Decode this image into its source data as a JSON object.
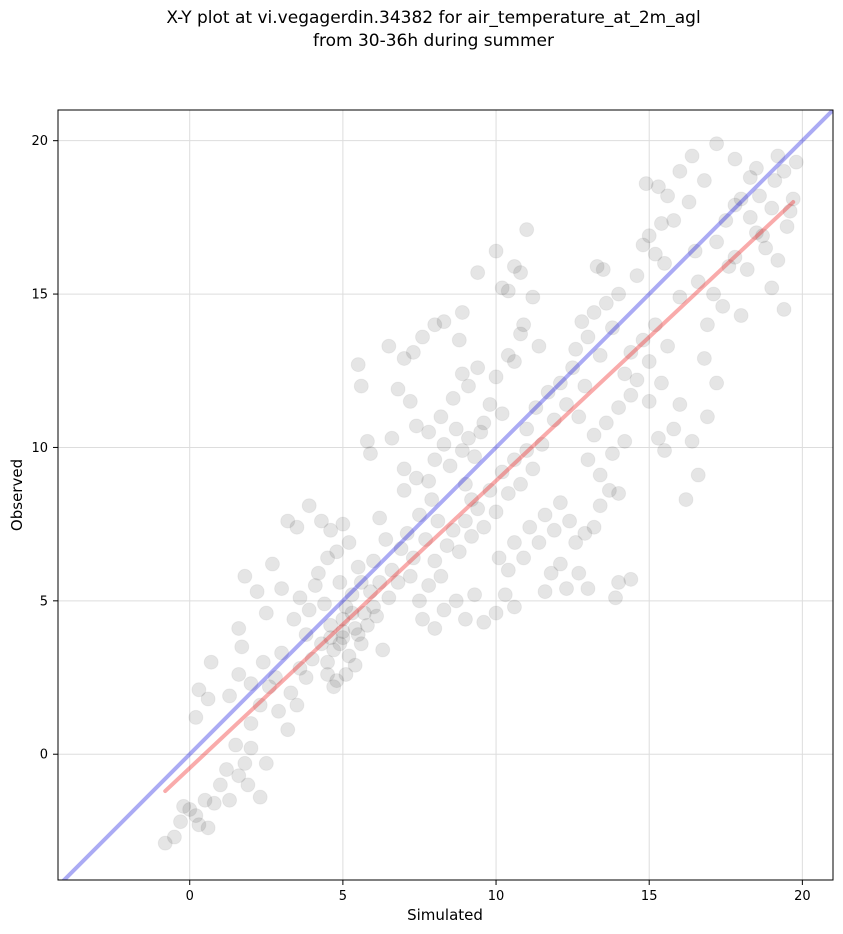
{
  "chart_data": {
    "type": "scatter",
    "title_line1": "X-Y plot at vi.vegagerdin.34382 for air_temperature_at_2m_agl",
    "title_line2": "from 30-36h during summer",
    "xlabel": "Simulated",
    "ylabel": "Observed",
    "xlim": [
      -4.3,
      21.0
    ],
    "ylim": [
      -4.1,
      21.0
    ],
    "xticks": [
      0,
      5,
      10,
      15,
      20
    ],
    "yticks": [
      0,
      5,
      10,
      15,
      20
    ],
    "xtick_labels": [
      "0",
      "5",
      "10",
      "15",
      "20"
    ],
    "ytick_labels": [
      "0",
      "5",
      "10",
      "15",
      "20"
    ],
    "grid": true,
    "reference_line": {
      "description": "1:1",
      "x": [
        -4.3,
        21.0
      ],
      "y": [
        -4.3,
        21.0
      ],
      "color": "#0000dd"
    },
    "fit_line": {
      "x": [
        -0.8,
        19.7
      ],
      "y": [
        -1.2,
        18.0
      ],
      "color": "#ee2222"
    },
    "point_color": "#000000",
    "points": [
      [
        -0.8,
        -2.9
      ],
      [
        -0.5,
        -2.7
      ],
      [
        -0.3,
        -2.2
      ],
      [
        0.0,
        -1.8
      ],
      [
        0.3,
        -2.3
      ],
      [
        0.5,
        -1.5
      ],
      [
        0.8,
        -1.6
      ],
      [
        0.6,
        -2.4
      ],
      [
        0.2,
        -2.0
      ],
      [
        -0.2,
        -1.7
      ],
      [
        1.0,
        -1.0
      ],
      [
        1.3,
        -1.5
      ],
      [
        1.6,
        -0.7
      ],
      [
        1.8,
        -0.3
      ],
      [
        2.0,
        0.2
      ],
      [
        1.5,
        0.3
      ],
      [
        1.2,
        -0.5
      ],
      [
        1.9,
        -1.0
      ],
      [
        2.3,
        -1.4
      ],
      [
        2.5,
        -0.3
      ],
      [
        0.2,
        1.2
      ],
      [
        0.6,
        1.8
      ],
      [
        0.7,
        3.0
      ],
      [
        0.3,
        2.1
      ],
      [
        1.3,
        1.9
      ],
      [
        1.6,
        2.6
      ],
      [
        1.7,
        3.5
      ],
      [
        2.0,
        1.0
      ],
      [
        2.3,
        1.6
      ],
      [
        2.6,
        2.2
      ],
      [
        1.6,
        4.1
      ],
      [
        1.8,
        5.8
      ],
      [
        2.2,
        5.3
      ],
      [
        2.5,
        4.6
      ],
      [
        2.7,
        6.2
      ],
      [
        3.0,
        5.4
      ],
      [
        3.2,
        7.6
      ],
      [
        3.5,
        7.4
      ],
      [
        3.9,
        8.1
      ],
      [
        4.3,
        7.6
      ],
      [
        2.0,
        2.3
      ],
      [
        2.4,
        3.0
      ],
      [
        2.8,
        2.5
      ],
      [
        3.0,
        3.3
      ],
      [
        3.3,
        2.0
      ],
      [
        3.6,
        2.8
      ],
      [
        2.9,
        1.4
      ],
      [
        3.2,
        0.8
      ],
      [
        3.5,
        1.6
      ],
      [
        3.8,
        2.5
      ],
      [
        3.4,
        4.4
      ],
      [
        3.6,
        5.1
      ],
      [
        3.9,
        4.7
      ],
      [
        4.1,
        5.5
      ],
      [
        3.8,
        3.9
      ],
      [
        4.0,
        3.1
      ],
      [
        4.3,
        3.6
      ],
      [
        4.5,
        2.6
      ],
      [
        4.6,
        4.2
      ],
      [
        4.4,
        4.9
      ],
      [
        4.2,
        5.9
      ],
      [
        4.5,
        6.4
      ],
      [
        4.8,
        6.6
      ],
      [
        5.0,
        7.5
      ],
      [
        4.6,
        7.3
      ],
      [
        5.2,
        6.9
      ],
      [
        4.9,
        5.6
      ],
      [
        5.3,
        5.2
      ],
      [
        5.5,
        6.1
      ],
      [
        5.1,
        4.8
      ],
      [
        4.7,
        3.4
      ],
      [
        5.0,
        3.8
      ],
      [
        5.2,
        3.2
      ],
      [
        4.8,
        2.4
      ],
      [
        5.4,
        2.9
      ],
      [
        5.6,
        3.6
      ],
      [
        5.0,
        4.4
      ],
      [
        5.4,
        4.1
      ],
      [
        5.7,
        4.6
      ],
      [
        5.9,
        5.3
      ],
      [
        4.5,
        3.0
      ],
      [
        4.7,
        2.2
      ],
      [
        5.1,
        2.6
      ],
      [
        4.9,
        3.6
      ],
      [
        5.3,
        4.6
      ],
      [
        5.0,
        4.0
      ],
      [
        4.6,
        3.8
      ],
      [
        5.5,
        3.9
      ],
      [
        5.8,
        4.2
      ],
      [
        6.0,
        4.8
      ],
      [
        5.6,
        5.6
      ],
      [
        6.0,
        6.3
      ],
      [
        6.2,
        5.6
      ],
      [
        6.4,
        7.0
      ],
      [
        6.6,
        6.0
      ],
      [
        6.2,
        7.7
      ],
      [
        6.5,
        5.1
      ],
      [
        6.8,
        5.6
      ],
      [
        6.1,
        4.5
      ],
      [
        6.3,
        3.4
      ],
      [
        5.8,
        10.2
      ],
      [
        5.9,
        9.8
      ],
      [
        5.5,
        12.7
      ],
      [
        5.6,
        12.0
      ],
      [
        6.5,
        13.3
      ],
      [
        7.0,
        12.9
      ],
      [
        7.3,
        13.1
      ],
      [
        7.6,
        13.6
      ],
      [
        8.0,
        14.0
      ],
      [
        8.3,
        14.1
      ],
      [
        6.8,
        11.9
      ],
      [
        7.2,
        11.5
      ],
      [
        6.6,
        10.3
      ],
      [
        7.0,
        9.3
      ],
      [
        7.4,
        10.7
      ],
      [
        7.8,
        10.5
      ],
      [
        8.2,
        11.0
      ],
      [
        8.6,
        11.6
      ],
      [
        8.9,
        12.4
      ],
      [
        8.8,
        13.5
      ],
      [
        8.9,
        14.4
      ],
      [
        9.1,
        12.0
      ],
      [
        9.4,
        12.6
      ],
      [
        9.6,
        10.8
      ],
      [
        9.8,
        11.4
      ],
      [
        10.0,
        12.3
      ],
      [
        10.2,
        11.1
      ],
      [
        10.4,
        13.0
      ],
      [
        10.6,
        12.8
      ],
      [
        10.8,
        13.7
      ],
      [
        9.4,
        15.7
      ],
      [
        10.0,
        16.4
      ],
      [
        10.2,
        15.2
      ],
      [
        10.4,
        15.1
      ],
      [
        10.6,
        15.9
      ],
      [
        10.8,
        15.7
      ],
      [
        11.0,
        17.1
      ],
      [
        11.2,
        14.9
      ],
      [
        10.9,
        14.0
      ],
      [
        11.4,
        13.3
      ],
      [
        6.9,
        6.7
      ],
      [
        7.1,
        7.2
      ],
      [
        7.3,
        6.4
      ],
      [
        7.5,
        7.8
      ],
      [
        7.7,
        7.0
      ],
      [
        7.9,
        8.3
      ],
      [
        7.0,
        8.6
      ],
      [
        7.4,
        9.0
      ],
      [
        7.8,
        8.9
      ],
      [
        8.1,
        7.6
      ],
      [
        8.0,
        9.6
      ],
      [
        8.3,
        10.1
      ],
      [
        8.5,
        9.4
      ],
      [
        8.7,
        10.6
      ],
      [
        8.9,
        9.9
      ],
      [
        9.1,
        10.3
      ],
      [
        9.3,
        9.7
      ],
      [
        9.5,
        10.5
      ],
      [
        9.0,
        8.8
      ],
      [
        9.2,
        8.3
      ],
      [
        7.2,
        5.8
      ],
      [
        7.5,
        5.0
      ],
      [
        7.8,
        5.5
      ],
      [
        8.0,
        6.3
      ],
      [
        8.2,
        5.8
      ],
      [
        8.4,
        6.8
      ],
      [
        8.6,
        7.3
      ],
      [
        8.8,
        6.6
      ],
      [
        9.0,
        7.6
      ],
      [
        9.2,
        7.1
      ],
      [
        7.6,
        4.4
      ],
      [
        8.0,
        4.1
      ],
      [
        8.3,
        4.7
      ],
      [
        8.7,
        5.0
      ],
      [
        9.0,
        4.4
      ],
      [
        9.3,
        5.2
      ],
      [
        9.6,
        4.3
      ],
      [
        10.0,
        4.6
      ],
      [
        10.3,
        5.2
      ],
      [
        10.6,
        4.8
      ],
      [
        9.4,
        8.0
      ],
      [
        9.6,
        7.4
      ],
      [
        9.8,
        8.6
      ],
      [
        10.0,
        7.9
      ],
      [
        10.2,
        9.2
      ],
      [
        10.4,
        8.5
      ],
      [
        10.6,
        9.6
      ],
      [
        10.8,
        8.8
      ],
      [
        11.0,
        9.9
      ],
      [
        11.2,
        9.3
      ],
      [
        10.1,
        6.4
      ],
      [
        10.4,
        6.0
      ],
      [
        10.6,
        6.9
      ],
      [
        10.9,
        6.4
      ],
      [
        11.1,
        7.4
      ],
      [
        11.4,
        6.9
      ],
      [
        11.6,
        7.8
      ],
      [
        11.9,
        7.3
      ],
      [
        12.1,
        8.2
      ],
      [
        12.4,
        7.6
      ],
      [
        11.0,
        10.6
      ],
      [
        11.3,
        11.3
      ],
      [
        11.5,
        10.1
      ],
      [
        11.7,
        11.8
      ],
      [
        11.9,
        10.9
      ],
      [
        12.1,
        12.1
      ],
      [
        12.3,
        11.4
      ],
      [
        12.5,
        12.6
      ],
      [
        12.7,
        11.0
      ],
      [
        12.9,
        12.0
      ],
      [
        11.6,
        5.3
      ],
      [
        11.8,
        5.9
      ],
      [
        12.1,
        6.2
      ],
      [
        12.3,
        5.4
      ],
      [
        12.6,
        6.9
      ],
      [
        12.9,
        7.2
      ],
      [
        13.2,
        7.4
      ],
      [
        13.4,
        8.1
      ],
      [
        12.7,
        5.9
      ],
      [
        13.0,
        5.4
      ],
      [
        12.6,
        13.2
      ],
      [
        12.8,
        14.1
      ],
      [
        13.0,
        13.6
      ],
      [
        13.2,
        14.4
      ],
      [
        13.4,
        13.0
      ],
      [
        13.6,
        14.7
      ],
      [
        13.8,
        13.9
      ],
      [
        14.0,
        15.0
      ],
      [
        13.3,
        15.9
      ],
      [
        13.5,
        15.8
      ],
      [
        13.0,
        9.6
      ],
      [
        13.2,
        10.4
      ],
      [
        13.4,
        9.1
      ],
      [
        13.6,
        10.8
      ],
      [
        13.8,
        9.8
      ],
      [
        14.0,
        11.3
      ],
      [
        14.2,
        10.2
      ],
      [
        14.4,
        11.7
      ],
      [
        13.7,
        8.6
      ],
      [
        14.0,
        8.5
      ],
      [
        14.2,
        12.4
      ],
      [
        14.4,
        13.1
      ],
      [
        14.6,
        12.2
      ],
      [
        14.8,
        13.5
      ],
      [
        15.0,
        12.8
      ],
      [
        15.2,
        14.0
      ],
      [
        15.4,
        12.1
      ],
      [
        15.6,
        13.3
      ],
      [
        15.0,
        11.5
      ],
      [
        15.3,
        10.3
      ],
      [
        14.0,
        5.6
      ],
      [
        13.9,
        5.1
      ],
      [
        14.4,
        5.7
      ],
      [
        15.5,
        9.9
      ],
      [
        15.8,
        10.6
      ],
      [
        16.0,
        11.4
      ],
      [
        16.2,
        8.3
      ],
      [
        16.4,
        10.2
      ],
      [
        16.6,
        9.1
      ],
      [
        16.9,
        11.0
      ],
      [
        14.6,
        15.6
      ],
      [
        14.8,
        16.6
      ],
      [
        15.0,
        16.9
      ],
      [
        15.2,
        16.3
      ],
      [
        15.4,
        17.3
      ],
      [
        15.5,
        16.0
      ],
      [
        15.8,
        17.4
      ],
      [
        16.0,
        14.9
      ],
      [
        16.3,
        18.0
      ],
      [
        16.5,
        16.4
      ],
      [
        14.9,
        18.6
      ],
      [
        15.3,
        18.5
      ],
      [
        15.6,
        18.2
      ],
      [
        16.0,
        19.0
      ],
      [
        16.4,
        19.5
      ],
      [
        16.8,
        18.7
      ],
      [
        17.2,
        19.9
      ],
      [
        17.8,
        19.4
      ],
      [
        18.3,
        18.8
      ],
      [
        18.5,
        19.1
      ],
      [
        16.6,
        15.4
      ],
      [
        16.9,
        14.0
      ],
      [
        17.1,
        15.0
      ],
      [
        17.4,
        14.6
      ],
      [
        17.6,
        15.9
      ],
      [
        17.8,
        16.2
      ],
      [
        18.0,
        14.3
      ],
      [
        18.2,
        15.8
      ],
      [
        18.5,
        17.0
      ],
      [
        18.8,
        16.5
      ],
      [
        16.8,
        12.9
      ],
      [
        17.2,
        12.1
      ],
      [
        17.5,
        17.4
      ],
      [
        17.8,
        17.9
      ],
      [
        18.0,
        18.1
      ],
      [
        18.3,
        17.5
      ],
      [
        18.6,
        18.2
      ],
      [
        19.0,
        17.8
      ],
      [
        19.2,
        19.5
      ],
      [
        19.4,
        19.0
      ],
      [
        19.0,
        15.2
      ],
      [
        19.2,
        16.1
      ],
      [
        19.4,
        14.5
      ],
      [
        19.6,
        17.7
      ],
      [
        19.7,
        18.1
      ],
      [
        19.8,
        19.3
      ],
      [
        19.5,
        17.2
      ],
      [
        19.1,
        18.7
      ],
      [
        18.7,
        16.9
      ],
      [
        17.2,
        16.7
      ]
    ]
  }
}
